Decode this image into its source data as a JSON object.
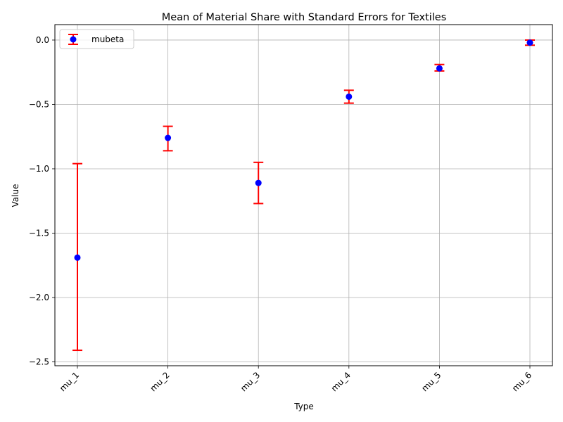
{
  "chart_data": {
    "type": "scatter",
    "title": "Mean of Material Share with Standard Errors for Textiles",
    "xlabel": "Type",
    "ylabel": "Value",
    "categories": [
      "mu_1",
      "mu_2",
      "mu_3",
      "mu_4",
      "mu_5",
      "mu_6"
    ],
    "series": [
      {
        "name": "mubeta",
        "values": [
          -1.69,
          -0.76,
          -1.11,
          -0.44,
          -0.22,
          -0.02
        ],
        "error_lower": [
          -2.41,
          -0.86,
          -1.27,
          -0.49,
          -0.24,
          -0.04
        ],
        "error_upper": [
          -0.96,
          -0.67,
          -0.95,
          -0.39,
          -0.19,
          0.0
        ],
        "marker_color": "#0000ff",
        "errorbar_color": "#ff0000"
      }
    ],
    "ylim": [
      -2.53,
      0.12
    ],
    "yticks": [
      0.0,
      -0.5,
      -1.0,
      -1.5,
      -2.0,
      -2.5
    ],
    "ytick_labels": [
      "0.0",
      "−0.5",
      "−1.0",
      "−1.5",
      "−2.0",
      "−2.5"
    ],
    "grid": true,
    "legend_position": "upper-left"
  }
}
